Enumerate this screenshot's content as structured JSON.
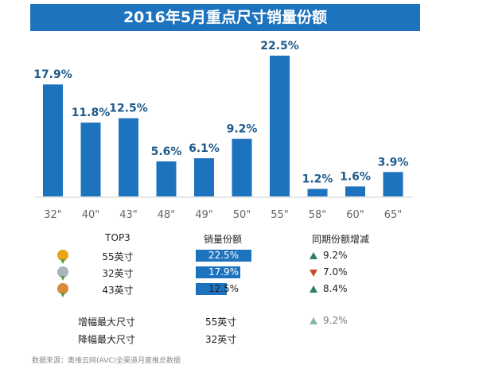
{
  "chart_data": {
    "type": "bar",
    "title": "2016年5月重点尺寸销量份额",
    "categories": [
      "32\"",
      "40\"",
      "43\"",
      "48\"",
      "49\"",
      "50\"",
      "55\"",
      "58\"",
      "60\"",
      "65\""
    ],
    "values": [
      17.9,
      11.8,
      12.5,
      5.6,
      6.1,
      9.2,
      22.5,
      1.2,
      1.6,
      3.9
    ],
    "value_labels": [
      "17.9%",
      "11.8%",
      "12.5%",
      "5.6%",
      "6.1%",
      "9.2%",
      "22.5%",
      "1.2%",
      "1.6%",
      "3.9%"
    ],
    "ylim": [
      0,
      22.5
    ],
    "grid": false,
    "bar_color": "#1e73be"
  },
  "table": {
    "headers": [
      "TOP3",
      "销量份额",
      "同期份额增减"
    ],
    "rows": [
      {
        "medal": "gold",
        "medal_color": "#e8a317",
        "size": "55英寸",
        "share": 22.5,
        "share_label": "22.5%",
        "change_dir": "up",
        "change": "9.2%"
      },
      {
        "medal": "silver",
        "medal_color": "#a9b4bd",
        "size": "32英寸",
        "share": 17.9,
        "share_label": "17.9%",
        "change_dir": "down",
        "change": "7.0%"
      },
      {
        "medal": "bronze",
        "medal_color": "#d98a3a",
        "size": "43英寸",
        "share": 12.5,
        "share_label": "12.5%",
        "change_dir": "up",
        "change": "8.4%"
      }
    ],
    "summary": [
      {
        "label": "增幅最大尺寸",
        "value": "55英寸",
        "change": "9.2%"
      },
      {
        "label": "降幅最大尺寸",
        "value": "32英寸",
        "change": ""
      }
    ]
  },
  "source": "数据来源：奥维云网(AVC)全渠道月度推总数据"
}
